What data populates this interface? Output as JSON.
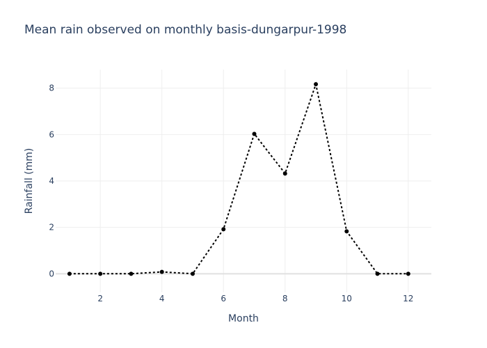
{
  "chart_data": {
    "type": "line",
    "title": "Mean rain observed on monthly basis-dungarpur-1998",
    "xlabel": "Month",
    "ylabel": "Rainfall (mm)",
    "x": [
      1,
      2,
      3,
      4,
      5,
      6,
      7,
      8,
      9,
      10,
      11,
      12
    ],
    "series": [
      {
        "values": [
          0,
          0,
          0,
          0.08,
          0,
          1.92,
          6.03,
          4.32,
          8.17,
          1.83,
          0,
          0
        ]
      }
    ],
    "xlim": [
      0.55,
      12.75
    ],
    "ylim": [
      -0.8,
      8.8
    ],
    "xticks": [
      2,
      4,
      6,
      8,
      10,
      12
    ],
    "yticks": [
      0,
      2,
      4,
      6,
      8
    ],
    "grid": true,
    "line_color": "#000000",
    "line_style": "dotted",
    "markers": true
  }
}
